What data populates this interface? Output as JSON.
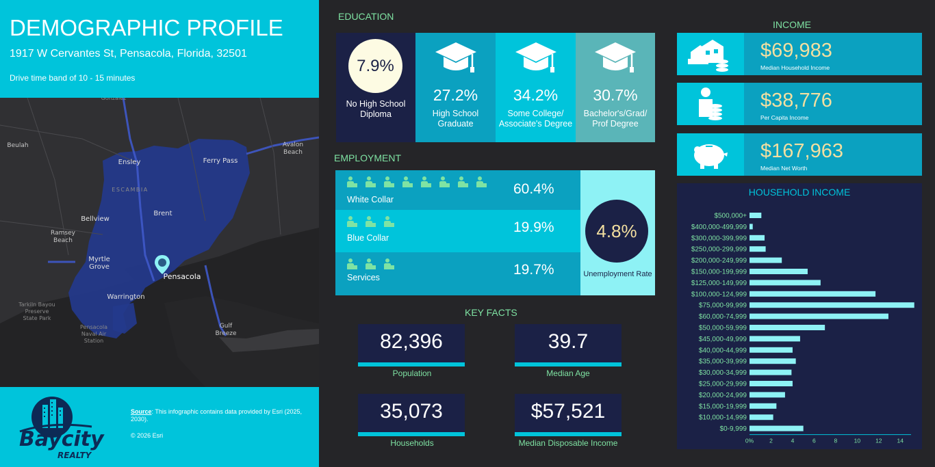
{
  "header": {
    "title": "DEMOGRAPHIC PROFILE",
    "address": "1917 W Cervantes St, Pensacola, Florida, 32501",
    "drive_time": "Drive time band of 10 - 15 minutes"
  },
  "map": {
    "labels": [
      "Gonzalez",
      "Beulah",
      "Ensley",
      "Ferry Pass",
      "Avalon Beach",
      "ESCAMBIA",
      "Brent",
      "Bellview",
      "Ramsey Beach",
      "Myrtle Grove",
      "Pensacola",
      "Warrington",
      "Tarkiln Bayou Preserve State Park",
      "Pensacola Naval Air Station",
      "Gulf Breeze"
    ],
    "marker_icon": "location-pin-icon"
  },
  "footer": {
    "logo_text_top": "Baycity",
    "logo_text_bottom": "REALTY",
    "source_label": "Source",
    "source_text": ": This infographic contains data provided by Esri (2025, 2030).",
    "copyright": "© 2026 Esri"
  },
  "education": {
    "title": "EDUCATION",
    "items": [
      {
        "pct": "7.9%",
        "label": "No High School Diploma"
      },
      {
        "pct": "27.2%",
        "label": "High School Graduate"
      },
      {
        "pct": "34.2%",
        "label": "Some College/ Associate's Degree"
      },
      {
        "pct": "30.7%",
        "label": "Bachelor's/Grad/ Prof Degree"
      }
    ],
    "icon": "graduation-cap-icon",
    "colors": {
      "no_hs": "#1b2146",
      "hs": "#0ba1c0",
      "college": "#00c4db",
      "bachelor": "#5ab5b8"
    }
  },
  "employment": {
    "title": "EMPLOYMENT",
    "rows": [
      {
        "label": "White Collar",
        "pct": "60.4%",
        "icons": 8,
        "icon": "office-worker-icon"
      },
      {
        "label": "Blue Collar",
        "pct": "19.9%",
        "icons": 3,
        "icon": "blue-collar-worker-icon"
      },
      {
        "label": "Services",
        "pct": "19.7%",
        "icons": 3,
        "icon": "service-worker-icon"
      }
    ],
    "unemployment": {
      "pct": "4.8%",
      "label": "Unemployment Rate"
    }
  },
  "key_facts": {
    "title": "KEY FACTS",
    "items": [
      {
        "value": "82,396",
        "label": "Population"
      },
      {
        "value": "39.7",
        "label": "Median Age"
      },
      {
        "value": "35,073",
        "label": "Households"
      },
      {
        "value": "$57,521",
        "label": "Median Disposable Income"
      }
    ]
  },
  "income": {
    "title": "INCOME",
    "items": [
      {
        "value": "$69,983",
        "label": "Median Household Income",
        "icon": "house-money-icon"
      },
      {
        "value": "$38,776",
        "label": "Per Capita Income",
        "icon": "person-coins-icon"
      },
      {
        "value": "$167,963",
        "label": "Median Net Worth",
        "icon": "piggy-bank-icon"
      }
    ]
  },
  "chart_data": {
    "type": "bar",
    "orientation": "horizontal",
    "title": "HOUSEHOLD INCOME",
    "categories": [
      "$500,000+",
      "$400,000-499,999",
      "$300,000-399,999",
      "$250,000-299,999",
      "$200,000-249,999",
      "$150,000-199,999",
      "$125,000-149,999",
      "$100,000-124,999",
      "$75,000-99,999",
      "$60,000-74,999",
      "$50,000-59,999",
      "$45,000-49,999",
      "$40,000-44,999",
      "$35,000-39,999",
      "$30,000-34,999",
      "$25,000-29,999",
      "$20,000-24,999",
      "$15,000-19,999",
      "$10,000-14,999",
      "$0-9,999"
    ],
    "values": [
      1.1,
      0.3,
      1.4,
      1.5,
      3.0,
      5.4,
      6.6,
      11.7,
      15.3,
      12.9,
      7.0,
      4.7,
      4.0,
      4.3,
      3.9,
      4.0,
      3.3,
      2.5,
      2.2,
      5.0
    ],
    "xlim": [
      0,
      15
    ],
    "xticks": [
      "0%",
      "2",
      "4",
      "6",
      "8",
      "10",
      "12",
      "14"
    ],
    "xtick_values": [
      0,
      2,
      4,
      6,
      8,
      10,
      12,
      14
    ],
    "bar_color": "#8ef2f5",
    "grid": false
  }
}
